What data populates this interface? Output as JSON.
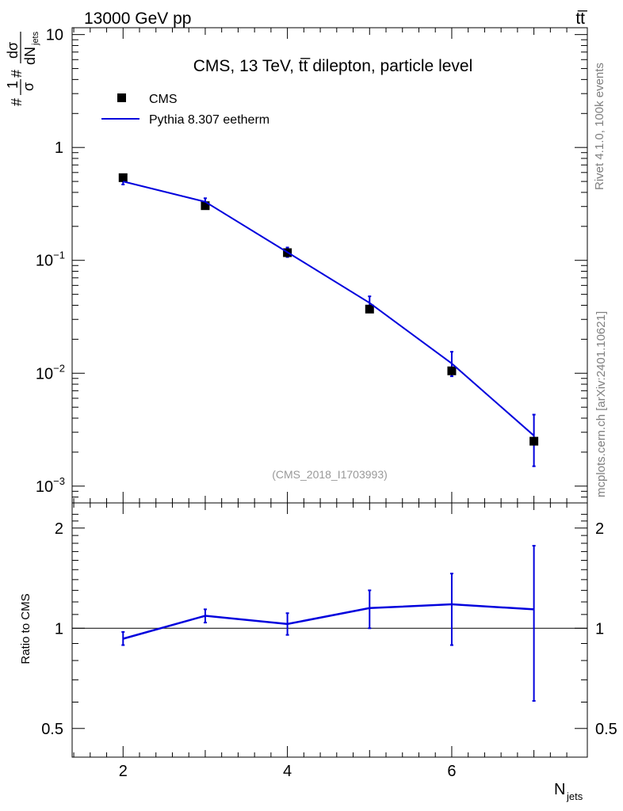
{
  "header": {
    "left": "13000 GeV pp",
    "right": "tt̅"
  },
  "side_labels": {
    "rivet": "Rivet 4.1.0,  100k events",
    "mcplots": "mcplots.cern.ch [arXiv:2401.10621]"
  },
  "colors": {
    "data": "#000000",
    "mc": "#0000dd",
    "text_gray": "#808080"
  },
  "chart_data": [
    {
      "type": "scatter",
      "panel": "main",
      "title": "CMS, 13 TeV, tt̅ dilepton, particle level",
      "watermark": "(CMS_2018_I1703993)",
      "ylabel_parts": {
        "num": "1",
        "den": "σ",
        "dnum": "dσ",
        "dden": "dN",
        "dsub": "jets",
        "hash": "#"
      },
      "yscale": "log",
      "xlim": [
        1.38,
        7.65
      ],
      "ylim": [
        0.00071,
        11.5
      ],
      "x": [
        2,
        3,
        4,
        5,
        6,
        7
      ],
      "yticks": [
        {
          "value": 0.001,
          "base": "10",
          "exp": "−3"
        },
        {
          "value": 0.01,
          "base": "10",
          "exp": "−2"
        },
        {
          "value": 0.1,
          "base": "10",
          "exp": "−1"
        },
        {
          "value": 1,
          "base": "1",
          "exp": ""
        },
        {
          "value": 10,
          "base": "10",
          "exp": ""
        }
      ],
      "series": [
        {
          "name": "CMS",
          "kind": "points",
          "values": [
            0.54,
            0.305,
            0.117,
            0.037,
            0.0105,
            0.0025
          ]
        },
        {
          "name": "Pythia 8.307 eetherm",
          "kind": "line",
          "values": [
            0.5,
            0.33,
            0.118,
            0.042,
            0.0122,
            0.0028
          ],
          "err_low": [
            0.47,
            0.305,
            0.107,
            0.036,
            0.0094,
            0.0015
          ],
          "err_high": [
            0.53,
            0.355,
            0.13,
            0.048,
            0.0155,
            0.0043
          ]
        }
      ],
      "legend": "top-left"
    },
    {
      "type": "line",
      "panel": "ratio",
      "ylabel": "Ratio to CMS",
      "xlabel": "N",
      "xlabel_sub": "jets",
      "yscale": "log",
      "xlim": [
        1.38,
        7.65
      ],
      "ylim": [
        0.41,
        2.38
      ],
      "x": [
        2,
        3,
        4,
        5,
        6,
        7
      ],
      "xticks": [
        "2",
        "4",
        "6"
      ],
      "yticks": [
        {
          "value": 0.5,
          "label": "0.5"
        },
        {
          "value": 1,
          "label": "1"
        },
        {
          "value": 2,
          "label": "2"
        }
      ],
      "reference": 1,
      "series": [
        {
          "name": "Pythia 8.307 eetherm",
          "values": [
            0.93,
            1.09,
            1.03,
            1.15,
            1.18,
            1.14
          ],
          "err_low": [
            0.89,
            1.04,
            0.955,
            1.0,
            0.89,
            0.605
          ],
          "err_high": [
            0.975,
            1.14,
            1.11,
            1.3,
            1.46,
            1.77
          ]
        }
      ]
    }
  ]
}
